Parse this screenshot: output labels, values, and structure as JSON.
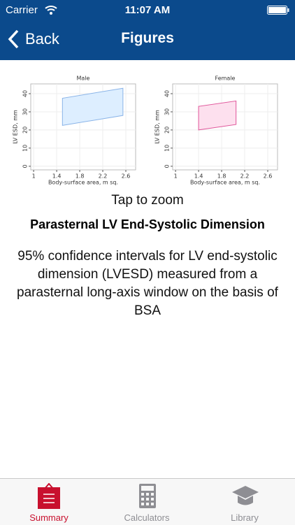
{
  "status_bar": {
    "carrier": "Carrier",
    "time": "11:07 AM"
  },
  "nav": {
    "back": "Back",
    "title": "Figures"
  },
  "chart_data": [
    {
      "type": "range",
      "title": "Male",
      "x_label": "Body-surface area, m sq.",
      "y_label": "LV ESD, mm",
      "x": [
        1.5,
        2.55
      ],
      "lower": [
        22.5,
        28
      ],
      "upper": [
        37.5,
        43
      ],
      "color": "#ddeeff",
      "line_color": "#8ab4e8",
      "xlim": [
        0.95,
        2.77
      ],
      "ylim": [
        -2,
        45.4
      ],
      "xticks": [
        1,
        1.4,
        1.8,
        2.2,
        2.6
      ],
      "yticks": [
        0,
        10,
        20,
        30,
        40
      ],
      "grid": true
    },
    {
      "type": "range",
      "title": "Female",
      "x_label": "Body-surface area, m sq.",
      "y_label": "LV ESD, mm",
      "x": [
        1.4,
        2.05
      ],
      "lower": [
        20,
        23
      ],
      "upper": [
        33,
        36
      ],
      "color": "#fde0ee",
      "line_color": "#e0559a",
      "xlim": [
        0.95,
        2.77
      ],
      "ylim": [
        -2,
        45.4
      ],
      "xticks": [
        1,
        1.4,
        1.8,
        2.2,
        2.6
      ],
      "yticks": [
        0,
        10,
        20,
        30,
        40
      ],
      "grid": true
    }
  ],
  "content": {
    "hint": "Tap to zoom",
    "heading": "Parasternal LV End-Systolic Dimension",
    "description": "95% confidence intervals for LV end-systolic dimension (LVESD) measured from a parasternal long-axis window on the basis of BSA"
  },
  "tabs": [
    "Summary",
    "Calculators",
    "Library"
  ]
}
